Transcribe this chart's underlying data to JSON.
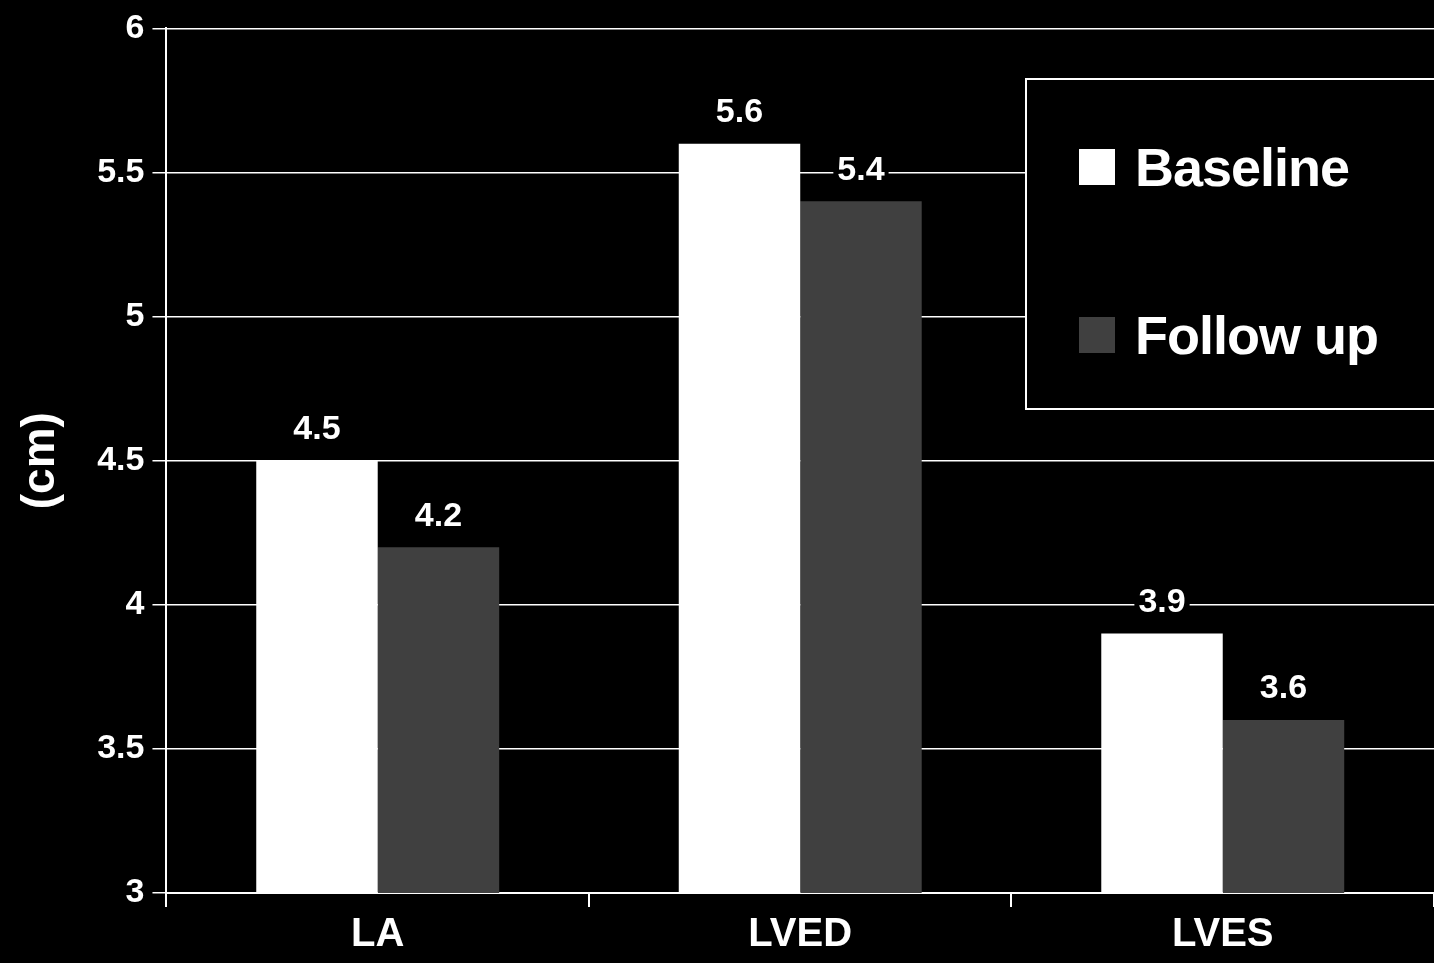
{
  "chart_data": {
    "type": "bar",
    "ylabel": "(cm)",
    "categories": [
      "LA",
      "LVED",
      "LVES"
    ],
    "series": [
      {
        "name": "Baseline",
        "color": "#ffffff",
        "values": [
          4.5,
          5.6,
          3.9
        ]
      },
      {
        "name": "Follow up",
        "color": "#404040",
        "values": [
          4.2,
          5.4,
          3.6
        ]
      }
    ],
    "ylim": [
      3,
      6
    ],
    "yticks": [
      3,
      3.5,
      4,
      4.5,
      5,
      5.5,
      6
    ],
    "grid": "y",
    "legend": "top right",
    "data_labels": true
  }
}
